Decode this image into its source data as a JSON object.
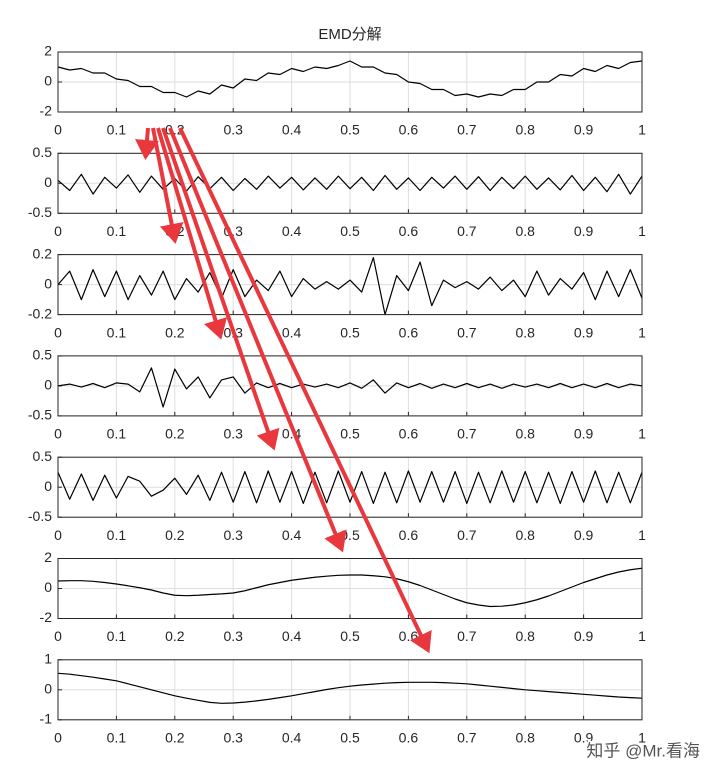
{
  "chart_data": [
    {
      "type": "line",
      "title": "EMD分解",
      "xlim": [
        0,
        1
      ],
      "ylim": [
        -2,
        2
      ],
      "yticks": [
        -2,
        0,
        2
      ],
      "xticks": [
        0,
        0.1,
        0.2,
        0.3,
        0.4,
        0.5,
        0.6,
        0.7,
        0.8,
        0.9,
        1
      ],
      "grid": true,
      "x": [
        0,
        0.02,
        0.04,
        0.06,
        0.08,
        0.1,
        0.12,
        0.14,
        0.16,
        0.18,
        0.2,
        0.22,
        0.24,
        0.26,
        0.28,
        0.3,
        0.32,
        0.34,
        0.36,
        0.38,
        0.4,
        0.42,
        0.44,
        0.46,
        0.48,
        0.5,
        0.52,
        0.54,
        0.56,
        0.58,
        0.6,
        0.62,
        0.64,
        0.66,
        0.68,
        0.7,
        0.72,
        0.74,
        0.76,
        0.78,
        0.8,
        0.82,
        0.84,
        0.86,
        0.88,
        0.9,
        0.92,
        0.94,
        0.96,
        0.98,
        1
      ],
      "series": [
        {
          "color": "#000000",
          "values": [
            1.0,
            0.8,
            0.9,
            0.6,
            0.6,
            0.2,
            0.1,
            -0.3,
            -0.3,
            -0.7,
            -0.7,
            -1.0,
            -0.6,
            -0.8,
            -0.2,
            -0.4,
            0.2,
            0.1,
            0.6,
            0.5,
            0.9,
            0.7,
            1.0,
            0.9,
            1.1,
            1.4,
            1.0,
            1.0,
            0.6,
            0.5,
            0.0,
            -0.1,
            -0.5,
            -0.5,
            -0.9,
            -0.8,
            -1.0,
            -0.8,
            -0.9,
            -0.5,
            -0.5,
            0.0,
            0.0,
            0.5,
            0.4,
            0.9,
            0.7,
            1.1,
            0.9,
            1.3,
            1.4
          ]
        }
      ]
    },
    {
      "type": "line",
      "xlim": [
        0,
        1
      ],
      "ylim": [
        -0.5,
        0.5
      ],
      "yticks": [
        -0.5,
        0,
        0.5
      ],
      "xticks": [
        0,
        0.1,
        0.2,
        0.3,
        0.4,
        0.5,
        0.6,
        0.7,
        0.8,
        0.9,
        1
      ],
      "grid": true,
      "x": [
        0,
        0.02,
        0.04,
        0.06,
        0.08,
        0.1,
        0.12,
        0.14,
        0.16,
        0.18,
        0.2,
        0.22,
        0.24,
        0.26,
        0.28,
        0.3,
        0.32,
        0.34,
        0.36,
        0.38,
        0.4,
        0.42,
        0.44,
        0.46,
        0.48,
        0.5,
        0.52,
        0.54,
        0.56,
        0.58,
        0.6,
        0.62,
        0.64,
        0.66,
        0.68,
        0.7,
        0.72,
        0.74,
        0.76,
        0.78,
        0.8,
        0.82,
        0.84,
        0.86,
        0.88,
        0.9,
        0.92,
        0.94,
        0.96,
        0.98,
        1
      ],
      "series": [
        {
          "color": "#000000",
          "values": [
            0.05,
            -0.12,
            0.15,
            -0.18,
            0.1,
            -0.08,
            0.14,
            -0.15,
            0.12,
            -0.1,
            0.08,
            -0.13,
            0.11,
            -0.09,
            0.1,
            -0.12,
            0.08,
            -0.1,
            0.12,
            -0.08,
            0.1,
            -0.11,
            0.09,
            -0.1,
            0.12,
            -0.09,
            0.1,
            -0.12,
            0.13,
            -0.1,
            0.09,
            -0.12,
            0.1,
            -0.08,
            0.12,
            -0.1,
            0.11,
            -0.12,
            0.1,
            -0.09,
            0.12,
            -0.1,
            0.09,
            -0.11,
            0.13,
            -0.12,
            0.1,
            -0.14,
            0.15,
            -0.18,
            0.12
          ]
        }
      ]
    },
    {
      "type": "line",
      "xlim": [
        0,
        1
      ],
      "ylim": [
        -0.2,
        0.2
      ],
      "yticks": [
        -0.2,
        0,
        0.2
      ],
      "xticks": [
        0,
        0.1,
        0.2,
        0.3,
        0.4,
        0.5,
        0.6,
        0.7,
        0.8,
        0.9,
        1
      ],
      "grid": true,
      "x": [
        0,
        0.02,
        0.04,
        0.06,
        0.08,
        0.1,
        0.12,
        0.14,
        0.16,
        0.18,
        0.2,
        0.22,
        0.24,
        0.26,
        0.28,
        0.3,
        0.32,
        0.34,
        0.36,
        0.38,
        0.4,
        0.42,
        0.44,
        0.46,
        0.48,
        0.5,
        0.52,
        0.54,
        0.56,
        0.58,
        0.6,
        0.62,
        0.64,
        0.66,
        0.68,
        0.7,
        0.72,
        0.74,
        0.76,
        0.78,
        0.8,
        0.82,
        0.84,
        0.86,
        0.88,
        0.9,
        0.92,
        0.94,
        0.96,
        0.98,
        1
      ],
      "series": [
        {
          "color": "#000000",
          "values": [
            0.0,
            0.09,
            -0.1,
            0.1,
            -0.08,
            0.09,
            -0.1,
            0.06,
            -0.07,
            0.09,
            -0.1,
            0.04,
            -0.05,
            0.08,
            -0.09,
            0.1,
            -0.08,
            0.03,
            -0.04,
            0.09,
            -0.08,
            0.04,
            -0.03,
            0.02,
            -0.03,
            0.03,
            -0.05,
            0.18,
            -0.2,
            0.06,
            -0.04,
            0.15,
            -0.14,
            0.03,
            -0.02,
            0.02,
            -0.03,
            0.05,
            -0.04,
            0.03,
            -0.08,
            0.09,
            -0.07,
            0.04,
            -0.03,
            0.08,
            -0.1,
            0.09,
            -0.08,
            0.1,
            -0.09
          ]
        }
      ]
    },
    {
      "type": "line",
      "xlim": [
        0,
        1
      ],
      "ylim": [
        -0.5,
        0.5
      ],
      "yticks": [
        -0.5,
        0,
        0.5
      ],
      "xticks": [
        0,
        0.1,
        0.2,
        0.3,
        0.4,
        0.5,
        0.6,
        0.7,
        0.8,
        0.9,
        1
      ],
      "grid": true,
      "x": [
        0,
        0.02,
        0.04,
        0.06,
        0.08,
        0.1,
        0.12,
        0.14,
        0.16,
        0.18,
        0.2,
        0.22,
        0.24,
        0.26,
        0.28,
        0.3,
        0.32,
        0.34,
        0.36,
        0.38,
        0.4,
        0.42,
        0.44,
        0.46,
        0.48,
        0.5,
        0.52,
        0.54,
        0.56,
        0.58,
        0.6,
        0.62,
        0.64,
        0.66,
        0.68,
        0.7,
        0.72,
        0.74,
        0.76,
        0.78,
        0.8,
        0.82,
        0.84,
        0.86,
        0.88,
        0.9,
        0.92,
        0.94,
        0.96,
        0.98,
        1
      ],
      "series": [
        {
          "color": "#000000",
          "values": [
            0.0,
            0.03,
            -0.02,
            0.04,
            -0.03,
            0.05,
            0.03,
            -0.1,
            0.3,
            -0.35,
            0.28,
            -0.05,
            0.15,
            -0.2,
            0.1,
            0.15,
            -0.12,
            0.05,
            -0.03,
            0.04,
            -0.03,
            0.03,
            -0.02,
            0.03,
            -0.03,
            0.05,
            -0.04,
            0.1,
            -0.12,
            0.05,
            -0.03,
            0.04,
            -0.04,
            0.03,
            -0.03,
            0.04,
            -0.03,
            0.03,
            -0.04,
            0.03,
            -0.02,
            0.03,
            -0.03,
            0.04,
            -0.03,
            0.03,
            -0.03,
            0.04,
            -0.03,
            0.03,
            0.0
          ]
        }
      ]
    },
    {
      "type": "line",
      "xlim": [
        0,
        1
      ],
      "ylim": [
        -0.5,
        0.5
      ],
      "yticks": [
        -0.5,
        0,
        0.5
      ],
      "xticks": [
        0,
        0.1,
        0.2,
        0.3,
        0.4,
        0.5,
        0.6,
        0.7,
        0.8,
        0.9,
        1
      ],
      "grid": true,
      "x": [
        0,
        0.02,
        0.04,
        0.06,
        0.08,
        0.1,
        0.12,
        0.14,
        0.16,
        0.18,
        0.2,
        0.22,
        0.24,
        0.26,
        0.28,
        0.3,
        0.32,
        0.34,
        0.36,
        0.38,
        0.4,
        0.42,
        0.44,
        0.46,
        0.48,
        0.5,
        0.52,
        0.54,
        0.56,
        0.58,
        0.6,
        0.62,
        0.64,
        0.66,
        0.68,
        0.7,
        0.72,
        0.74,
        0.76,
        0.78,
        0.8,
        0.82,
        0.84,
        0.86,
        0.88,
        0.9,
        0.92,
        0.94,
        0.96,
        0.98,
        1
      ],
      "series": [
        {
          "color": "#000000",
          "values": [
            0.25,
            -0.2,
            0.22,
            -0.22,
            0.2,
            -0.18,
            0.18,
            0.1,
            -0.15,
            -0.05,
            0.15,
            -0.12,
            0.2,
            -0.22,
            0.25,
            -0.25,
            0.26,
            -0.26,
            0.27,
            -0.25,
            0.26,
            -0.27,
            0.25,
            -0.26,
            0.27,
            -0.25,
            0.26,
            -0.27,
            0.25,
            -0.26,
            0.27,
            -0.25,
            0.26,
            -0.25,
            0.26,
            -0.27,
            0.25,
            -0.26,
            0.27,
            -0.25,
            0.26,
            -0.26,
            0.25,
            -0.27,
            0.26,
            -0.25,
            0.27,
            -0.26,
            0.25,
            -0.26,
            0.25
          ]
        }
      ]
    },
    {
      "type": "line",
      "xlim": [
        0,
        1
      ],
      "ylim": [
        -2,
        2
      ],
      "yticks": [
        -2,
        0,
        2
      ],
      "xticks": [
        0,
        0.1,
        0.2,
        0.3,
        0.4,
        0.5,
        0.6,
        0.7,
        0.8,
        0.9,
        1
      ],
      "grid": true,
      "x": [
        0,
        0.02,
        0.04,
        0.06,
        0.08,
        0.1,
        0.12,
        0.14,
        0.16,
        0.18,
        0.2,
        0.22,
        0.24,
        0.26,
        0.28,
        0.3,
        0.32,
        0.34,
        0.36,
        0.38,
        0.4,
        0.42,
        0.44,
        0.46,
        0.48,
        0.5,
        0.52,
        0.54,
        0.56,
        0.58,
        0.6,
        0.62,
        0.64,
        0.66,
        0.68,
        0.7,
        0.72,
        0.74,
        0.76,
        0.78,
        0.8,
        0.82,
        0.84,
        0.86,
        0.88,
        0.9,
        0.92,
        0.94,
        0.96,
        0.98,
        1
      ],
      "series": [
        {
          "color": "#000000",
          "values": [
            0.5,
            0.52,
            0.52,
            0.48,
            0.4,
            0.3,
            0.18,
            0.05,
            -0.1,
            -0.3,
            -0.45,
            -0.48,
            -0.45,
            -0.4,
            -0.36,
            -0.3,
            -0.15,
            0.05,
            0.25,
            0.4,
            0.55,
            0.65,
            0.75,
            0.82,
            0.88,
            0.9,
            0.9,
            0.85,
            0.78,
            0.65,
            0.45,
            0.2,
            -0.1,
            -0.4,
            -0.7,
            -0.95,
            -1.1,
            -1.2,
            -1.18,
            -1.1,
            -0.95,
            -0.75,
            -0.5,
            -0.2,
            0.1,
            0.4,
            0.65,
            0.9,
            1.1,
            1.25,
            1.35
          ]
        }
      ]
    },
    {
      "type": "line",
      "xlim": [
        0,
        1
      ],
      "ylim": [
        -1,
        1
      ],
      "yticks": [
        -1,
        0,
        1
      ],
      "xticks": [
        0,
        0.1,
        0.2,
        0.3,
        0.4,
        0.5,
        0.6,
        0.7,
        0.8,
        0.9,
        1
      ],
      "grid": true,
      "x": [
        0,
        0.02,
        0.04,
        0.06,
        0.08,
        0.1,
        0.12,
        0.14,
        0.16,
        0.18,
        0.2,
        0.22,
        0.24,
        0.26,
        0.28,
        0.3,
        0.32,
        0.34,
        0.36,
        0.38,
        0.4,
        0.42,
        0.44,
        0.46,
        0.48,
        0.5,
        0.52,
        0.54,
        0.56,
        0.58,
        0.6,
        0.62,
        0.64,
        0.66,
        0.68,
        0.7,
        0.72,
        0.74,
        0.76,
        0.78,
        0.8,
        0.82,
        0.84,
        0.86,
        0.88,
        0.9,
        0.92,
        0.94,
        0.96,
        0.98,
        1
      ],
      "series": [
        {
          "color": "#000000",
          "values": [
            0.55,
            0.52,
            0.47,
            0.42,
            0.36,
            0.3,
            0.2,
            0.1,
            0,
            -0.1,
            -0.2,
            -0.28,
            -0.35,
            -0.42,
            -0.45,
            -0.44,
            -0.41,
            -0.37,
            -0.32,
            -0.26,
            -0.2,
            -0.13,
            -0.06,
            0.01,
            0.07,
            0.12,
            0.16,
            0.19,
            0.22,
            0.24,
            0.25,
            0.25,
            0.25,
            0.24,
            0.22,
            0.2,
            0.16,
            0.12,
            0.08,
            0.04,
            0,
            -0.03,
            -0.06,
            -0.09,
            -0.12,
            -0.15,
            -0.18,
            -0.21,
            -0.24,
            -0.26,
            -0.28
          ]
        }
      ]
    }
  ],
  "watermark": "知乎 @Mr.看海"
}
